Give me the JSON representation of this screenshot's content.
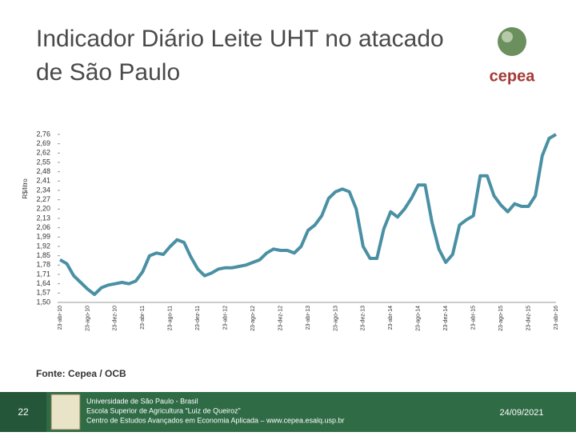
{
  "chart_data": {
    "type": "line",
    "title": "Indicador Diário Leite UHT no atacado de São Paulo",
    "y_label": "R$/litro",
    "source": "Fonte: Cepea / OCB",
    "x": [
      "23-abr-10",
      "23-mai-10",
      "23-jun-10",
      "23-jul-10",
      "23-ago-10",
      "23-set-10",
      "23-out-10",
      "23-nov-10",
      "23-dez-10",
      "23-jan-11",
      "23-fev-11",
      "23-mar-11",
      "23-abr-11",
      "23-mai-11",
      "23-jun-11",
      "23-jul-11",
      "23-ago-11",
      "23-set-11",
      "23-out-11",
      "23-nov-11",
      "23-dez-11",
      "23-jan-12",
      "23-fev-12",
      "23-mar-12",
      "23-abr-12",
      "23-mai-12",
      "23-jun-12",
      "23-jul-12",
      "23-ago-12",
      "23-set-12",
      "23-out-12",
      "23-nov-12",
      "23-dez-12",
      "23-jan-13",
      "23-fev-13",
      "23-mar-13",
      "23-abr-13",
      "23-mai-13",
      "23-jun-13",
      "23-jul-13",
      "23-ago-13",
      "23-set-13",
      "23-out-13",
      "23-nov-13",
      "23-dez-13",
      "23-jan-14",
      "23-fev-14",
      "23-mar-14",
      "23-abr-14",
      "23-mai-14",
      "23-jun-14",
      "23-jul-14",
      "23-ago-14",
      "23-set-14",
      "23-out-14",
      "23-nov-14",
      "23-dez-14",
      "23-jan-15",
      "23-fev-15",
      "23-mar-15",
      "23-abr-15",
      "23-mai-15",
      "23-jun-15",
      "23-jul-15",
      "23-ago-15",
      "23-set-15",
      "23-out-15",
      "23-nov-15",
      "23-dez-15",
      "23-jan-16",
      "23-fev-16",
      "23-mar-16",
      "23-abr-16"
    ],
    "xticks": [
      "23-abr-10",
      "23-ago-10",
      "23-dez-10",
      "23-abr-11",
      "23-ago-11",
      "23-dez-11",
      "23-abr-12",
      "23-ago-12",
      "23-dez-12",
      "23-abr-13",
      "23-ago-13",
      "23-dez-13",
      "23-abr-14",
      "23-ago-14",
      "23-dez-14",
      "23-abr-15",
      "23-ago-15",
      "23-dez-15",
      "23-abr-16"
    ],
    "series": [
      {
        "color": "#4a90a4",
        "values": [
          1.82,
          1.79,
          1.7,
          1.65,
          1.6,
          1.56,
          1.61,
          1.63,
          1.64,
          1.65,
          1.64,
          1.66,
          1.73,
          1.85,
          1.87,
          1.86,
          1.92,
          1.97,
          1.95,
          1.84,
          1.75,
          1.7,
          1.72,
          1.75,
          1.76,
          1.76,
          1.77,
          1.78,
          1.8,
          1.82,
          1.87,
          1.9,
          1.89,
          1.89,
          1.87,
          1.92,
          2.04,
          2.08,
          2.15,
          2.28,
          2.33,
          2.35,
          2.33,
          2.2,
          1.92,
          1.83,
          1.83,
          2.05,
          2.18,
          2.14,
          2.2,
          2.28,
          2.38,
          2.38,
          2.1,
          1.9,
          1.8,
          1.86,
          2.08,
          2.12,
          2.15,
          2.45,
          2.45,
          2.3,
          2.23,
          2.18,
          2.24,
          2.22,
          2.22,
          2.3,
          2.6,
          2.73,
          2.76
        ]
      }
    ],
    "ylim": [
      1.5,
      2.76
    ],
    "yticks": [
      {
        "value": 2.76,
        "label": "2,76"
      },
      {
        "value": 2.69,
        "label": "2,69"
      },
      {
        "value": 2.62,
        "label": "2,62"
      },
      {
        "value": 2.55,
        "label": "2,55"
      },
      {
        "value": 2.48,
        "label": "2,48"
      },
      {
        "value": 2.41,
        "label": "2,41"
      },
      {
        "value": 2.34,
        "label": "2,34"
      },
      {
        "value": 2.27,
        "label": "2,27"
      },
      {
        "value": 2.2,
        "label": "2,20"
      },
      {
        "value": 2.13,
        "label": "2,13"
      },
      {
        "value": 2.06,
        "label": "2,06"
      },
      {
        "value": 1.99,
        "label": "1,99"
      },
      {
        "value": 1.92,
        "label": "1,92"
      },
      {
        "value": 1.85,
        "label": "1,85"
      },
      {
        "value": 1.78,
        "label": "1,78"
      },
      {
        "value": 1.71,
        "label": "1,71"
      },
      {
        "value": 1.64,
        "label": "1,64"
      },
      {
        "value": 1.57,
        "label": "1,57"
      },
      {
        "value": 1.5,
        "label": "1,50"
      }
    ],
    "grid": false
  },
  "footer": {
    "page": "22",
    "lines": [
      "Universidade de São Paulo - Brasil",
      "Escola Superior de Agricultura “Luiz de Queiroz”",
      "Centro de Estudos Avançados em Economia Aplicada – www.cepea.esalq.usp.br"
    ],
    "date": "24/09/2021"
  },
  "logo": {
    "text": "cepea"
  }
}
